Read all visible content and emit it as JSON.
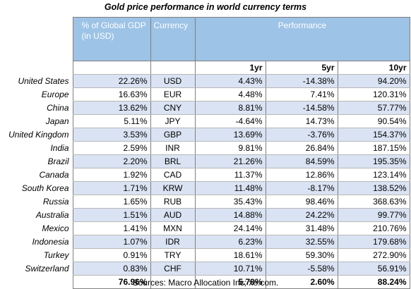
{
  "title": "Gold price performance in world currency terms",
  "headers": {
    "gdp": "% of Global GDP  (in USD)",
    "currency": "Currency",
    "performance": "Performance",
    "yr1": "1yr",
    "yr5": "5yr",
    "yr10": "10yr"
  },
  "rows": [
    {
      "country": "United States",
      "gdp": "22.26%",
      "currency": "USD",
      "yr1": "4.43%",
      "yr5": "-14.38%",
      "yr10": "94.20%"
    },
    {
      "country": "Europe",
      "gdp": "16.63%",
      "currency": "EUR",
      "yr1": "4.48%",
      "yr5": "7.41%",
      "yr10": "120.31%"
    },
    {
      "country": "China",
      "gdp": "13.62%",
      "currency": "CNY",
      "yr1": "8.81%",
      "yr5": "-14.58%",
      "yr10": "57.77%"
    },
    {
      "country": "Japan",
      "gdp": "5.11%",
      "currency": "JPY",
      "yr1": "-4.64%",
      "yr5": "14.73%",
      "yr10": "90.54%"
    },
    {
      "country": "United Kingdom",
      "gdp": "3.53%",
      "currency": "GBP",
      "yr1": "13.69%",
      "yr5": "-3.76%",
      "yr10": "154.37%"
    },
    {
      "country": "India",
      "gdp": "2.59%",
      "currency": "INR",
      "yr1": "9.81%",
      "yr5": "26.84%",
      "yr10": "187.15%"
    },
    {
      "country": "Brazil",
      "gdp": "2.20%",
      "currency": "BRL",
      "yr1": "21.26%",
      "yr5": "84.59%",
      "yr10": "195.35%"
    },
    {
      "country": "Canada",
      "gdp": "1.92%",
      "currency": "CAD",
      "yr1": "11.37%",
      "yr5": "12.86%",
      "yr10": "123.14%"
    },
    {
      "country": "South Korea",
      "gdp": "1.71%",
      "currency": "KRW",
      "yr1": "11.48%",
      "yr5": "-8.17%",
      "yr10": "138.52%"
    },
    {
      "country": "Russia",
      "gdp": "1.65%",
      "currency": "RUB",
      "yr1": "35.43%",
      "yr5": "98.46%",
      "yr10": "368.63%"
    },
    {
      "country": "Australia",
      "gdp": "1.51%",
      "currency": "AUD",
      "yr1": "14.88%",
      "yr5": "24.22%",
      "yr10": "99.77%"
    },
    {
      "country": "Mexico",
      "gdp": "1.41%",
      "currency": "MXN",
      "yr1": "24.14%",
      "yr5": "31.48%",
      "yr10": "210.76%"
    },
    {
      "country": "Indonesia",
      "gdp": "1.07%",
      "currency": "IDR",
      "yr1": "6.23%",
      "yr5": "32.55%",
      "yr10": "179.68%"
    },
    {
      "country": "Turkey",
      "gdp": "0.91%",
      "currency": "TRY",
      "yr1": "18.61%",
      "yr5": "59.30%",
      "yr10": "272.90%"
    },
    {
      "country": "Switzerland",
      "gdp": "0.83%",
      "currency": "CHF",
      "yr1": "10.71%",
      "yr5": "-5.58%",
      "yr10": "56.91%"
    }
  ],
  "totals": {
    "gdp": "76.96%",
    "yr1": "5.79%",
    "yr5": "2.60%",
    "yr10": "88.24%"
  },
  "footer": "Sources: Macro Allocation Inc; xe.com.",
  "colors": {
    "header_bg": "#9dc3e6",
    "row_shade": "#dae3f3"
  }
}
